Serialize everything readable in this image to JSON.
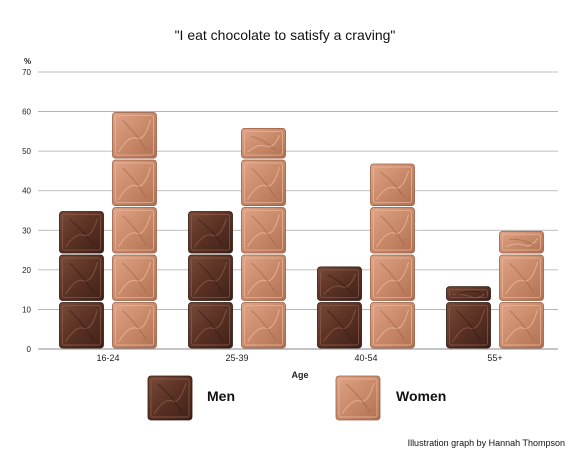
{
  "chart_data": {
    "type": "bar",
    "title": "\"I eat chocolate to satisfy a craving\"",
    "ylabel": "%",
    "xlabel": "Age",
    "categories": [
      "16-24",
      "25-39",
      "40-54",
      "55+"
    ],
    "series": [
      {
        "name": "Men",
        "values": [
          35,
          35,
          21,
          16
        ],
        "color": "#5a3124"
      },
      {
        "name": "Women",
        "values": [
          60,
          56,
          47,
          30
        ],
        "color": "#c98a6a"
      }
    ],
    "ylim": [
      0,
      70
    ],
    "yticks": [
      0,
      10,
      20,
      30,
      40,
      50,
      60,
      70
    ],
    "grid": true,
    "legend_position": "bottom",
    "unit_per_block": 12,
    "credit": "Illustration graph by Hannah Thompson"
  }
}
